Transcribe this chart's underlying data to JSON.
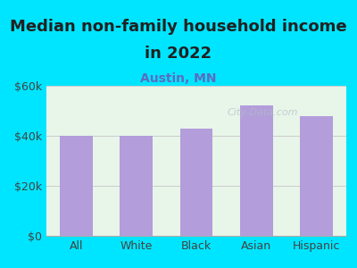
{
  "title_line1": "Median non-family household income",
  "title_line2": "in 2022",
  "subtitle": "Austin, MN",
  "categories": [
    "All",
    "White",
    "Black",
    "Asian",
    "Hispanic"
  ],
  "values": [
    40000,
    40000,
    43000,
    52000,
    48000
  ],
  "bar_color": "#b39ddb",
  "background_color": "#00e5ff",
  "plot_bg_start": "#e8f5e9",
  "plot_bg_end": "#f5f5f5",
  "title_color": "#212121",
  "subtitle_color": "#5c6bc0",
  "axis_label_color": "#424242",
  "tick_label_color": "#424242",
  "ylim": [
    0,
    60000
  ],
  "yticks": [
    0,
    20000,
    40000,
    60000
  ],
  "ytick_labels": [
    "$0",
    "$20k",
    "$40k",
    "$60k"
  ],
  "watermark": "City-Data.com",
  "title_fontsize": 13,
  "subtitle_fontsize": 10,
  "tick_fontsize": 9
}
